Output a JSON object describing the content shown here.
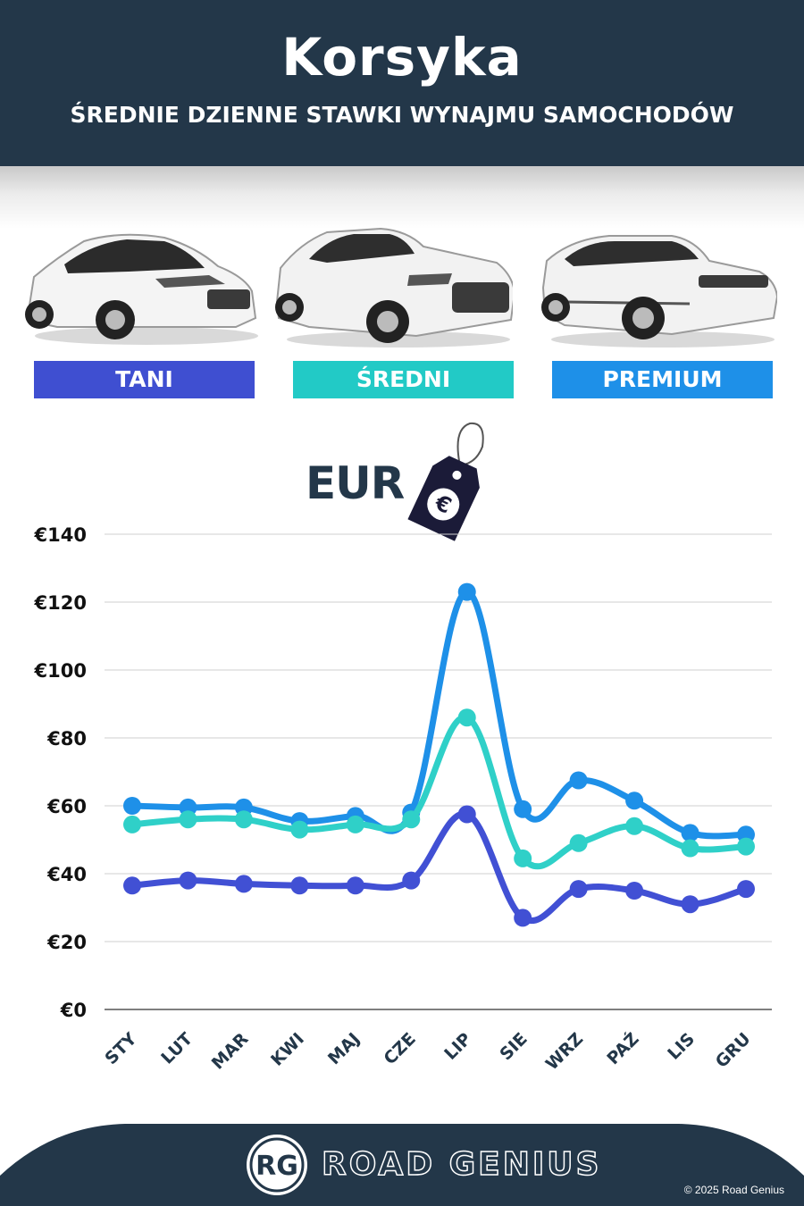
{
  "header": {
    "title": "Korsyka",
    "subtitle": "ŚREDNIE DZIENNE STAWKI WYNAJMU SAMOCHODÓW"
  },
  "categories": [
    {
      "label": "TANI",
      "color": "#3f4fd1",
      "icon": "hatchback-car-image"
    },
    {
      "label": "ŚREDNI",
      "color": "#22cac6",
      "icon": "suv-car-image"
    },
    {
      "label": "PREMIUM",
      "color": "#1e90e8",
      "icon": "premium-suv-car-image"
    }
  ],
  "currency_label": "EUR",
  "chart_data": {
    "type": "line",
    "categories": [
      "STY",
      "LUT",
      "MAR",
      "KWI",
      "MAJ",
      "CZE",
      "LIP",
      "SIE",
      "WRZ",
      "PAŹ",
      "LIS",
      "GRU"
    ],
    "series": [
      {
        "name": "PREMIUM",
        "color": "#1e90e8",
        "values": [
          60,
          59.5,
          59.5,
          55.5,
          57,
          58,
          123,
          59,
          67.5,
          61.5,
          52,
          51.5
        ]
      },
      {
        "name": "ŚREDNI",
        "color": "#2fd0c8",
        "values": [
          54.5,
          56,
          56,
          53,
          54.5,
          56,
          86,
          44.5,
          49,
          54,
          47.5,
          48
        ]
      },
      {
        "name": "TANI",
        "color": "#4150d4",
        "values": [
          36.5,
          38,
          37,
          36.5,
          36.5,
          38,
          57.5,
          27,
          35.5,
          35,
          31,
          35.5
        ]
      }
    ],
    "yticks": [
      "€0",
      "€20",
      "€40",
      "€60",
      "€80",
      "€100",
      "€120",
      "€140"
    ],
    "ylim": [
      0,
      140
    ],
    "grid": true
  },
  "footer": {
    "logo_text": "RG",
    "brand": "ROAD GENIUS",
    "copyright": "© 2025 Road Genius",
    "background": "#233749"
  }
}
